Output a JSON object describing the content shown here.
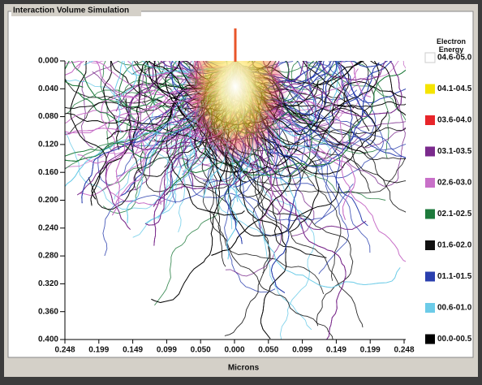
{
  "window": {
    "title": "Interaction Volume Simulation"
  },
  "plot": {
    "y_ticks": [
      "0.000",
      "0.040",
      "0.080",
      "0.120",
      "0.160",
      "0.200",
      "0.240",
      "0.280",
      "0.320",
      "0.360",
      "0.400"
    ],
    "x_ticks": [
      "0.248",
      "0.199",
      "0.149",
      "0.099",
      "0.050",
      "0.000",
      "0.050",
      "0.099",
      "0.149",
      "0.199",
      "0.248"
    ],
    "x_label": "Microns"
  },
  "legend": {
    "title": "Electron Energy",
    "items": [
      {
        "label": "04.6-05.0",
        "color": "#ffffff"
      },
      {
        "label": "04.1-04.5",
        "color": "#f5e400"
      },
      {
        "label": "03.6-04.0",
        "color": "#e8252a"
      },
      {
        "label": "03.1-03.5",
        "color": "#7a2a8c"
      },
      {
        "label": "02.6-03.0",
        "color": "#c870c8"
      },
      {
        "label": "02.1-02.5",
        "color": "#1e7a3c"
      },
      {
        "label": "01.6-02.0",
        "color": "#111111"
      },
      {
        "label": "01.1-01.5",
        "color": "#2a3fae"
      },
      {
        "label": "00.6-01.0",
        "color": "#6ccbe8"
      },
      {
        "label": "00.0-00.5",
        "color": "#000000"
      }
    ]
  }
}
